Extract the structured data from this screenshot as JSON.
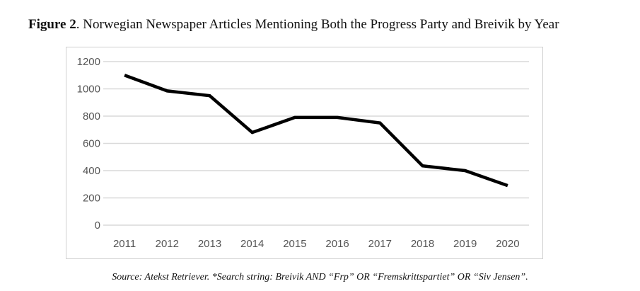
{
  "figure": {
    "label": "Figure 2",
    "title": ". Norwegian Newspaper Articles Mentioning Both the Progress Party and Breivik by Year",
    "source": "Source: Atekst Retriever. *Search string: Breivik AND “Frp” OR “Fremskrittspartiet” OR “Siv Jensen”."
  },
  "chart_data": {
    "type": "line",
    "title": "Norwegian Newspaper Articles Mentioning Both the Progress Party and Breivik by Year",
    "xlabel": "",
    "ylabel": "",
    "categories": [
      "2011",
      "2012",
      "2013",
      "2014",
      "2015",
      "2016",
      "2017",
      "2018",
      "2019",
      "2020"
    ],
    "values": [
      1100,
      985,
      950,
      680,
      790,
      790,
      750,
      435,
      400,
      290
    ],
    "ylim": [
      0,
      1200
    ],
    "yticks": [
      "0",
      "200",
      "400",
      "600",
      "800",
      "1000",
      "1200"
    ],
    "grid": true,
    "legend": "none",
    "line_color": "#000000",
    "grid_color": "#d9d9d9"
  }
}
